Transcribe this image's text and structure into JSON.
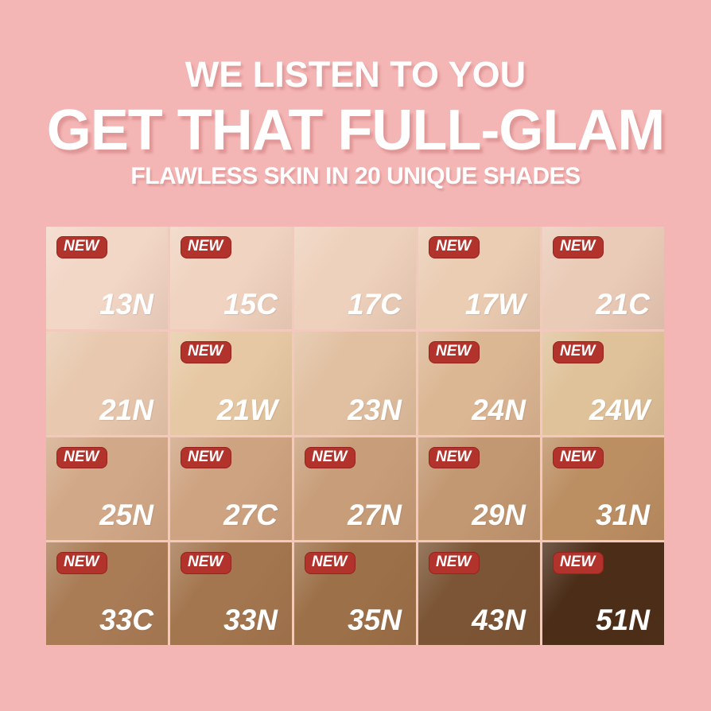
{
  "page": {
    "background_color": "#F4B6B5",
    "badge_color": "#B2332B",
    "badge_label": "NEW"
  },
  "header": {
    "line1": "WE LISTEN TO YOU",
    "line2": "GET THAT FULL-GLAM",
    "line3": "FLAWLESS SKIN IN 20 UNIQUE SHADES"
  },
  "shade_grid": {
    "columns": 5,
    "rows": 4,
    "total_shades": 20,
    "shades": [
      {
        "code": "13N",
        "color": "#F2D6C6",
        "new": true
      },
      {
        "code": "15C",
        "color": "#F0D3C0",
        "new": true
      },
      {
        "code": "17C",
        "color": "#EED1BC",
        "new": false
      },
      {
        "code": "17W",
        "color": "#EBCDB4",
        "new": true
      },
      {
        "code": "21C",
        "color": "#EACBB8",
        "new": true
      },
      {
        "code": "21N",
        "color": "#E8C9AF",
        "new": false
      },
      {
        "code": "21W",
        "color": "#E6C9A4",
        "new": true
      },
      {
        "code": "23N",
        "color": "#E1C0A1",
        "new": false
      },
      {
        "code": "24N",
        "color": "#DCB794",
        "new": true
      },
      {
        "code": "24W",
        "color": "#DFC29A",
        "new": true
      },
      {
        "code": "25N",
        "color": "#D2A988",
        "new": true
      },
      {
        "code": "27C",
        "color": "#CEA381",
        "new": true
      },
      {
        "code": "27N",
        "color": "#C89E7A",
        "new": true
      },
      {
        "code": "29N",
        "color": "#C29872",
        "new": true
      },
      {
        "code": "31N",
        "color": "#BC8F63",
        "new": true
      },
      {
        "code": "33C",
        "color": "#A97C56",
        "new": true
      },
      {
        "code": "33N",
        "color": "#A3764F",
        "new": true
      },
      {
        "code": "35N",
        "color": "#9C7048",
        "new": true
      },
      {
        "code": "43N",
        "color": "#7B5535",
        "new": true
      },
      {
        "code": "51N",
        "color": "#4B2D18",
        "new": true
      }
    ]
  }
}
